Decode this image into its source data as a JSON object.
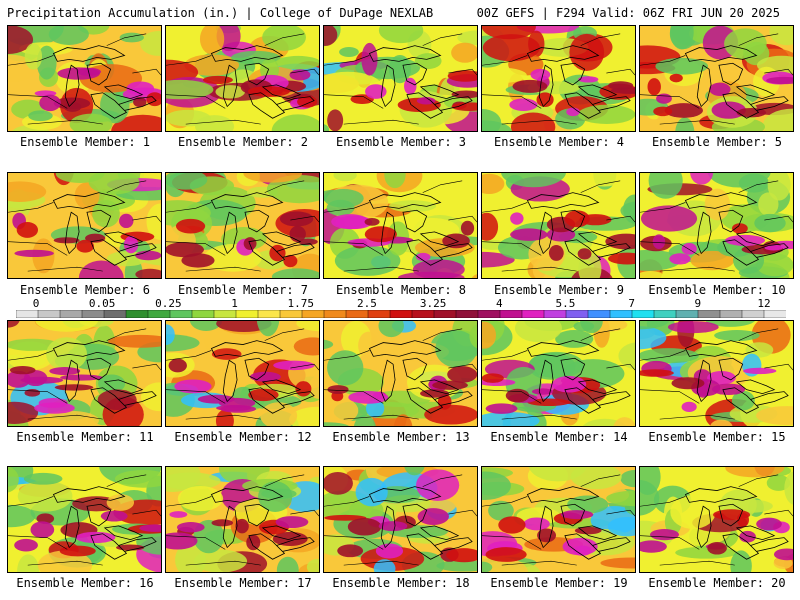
{
  "header": {
    "title": "Precipitation Accumulation (in.) | College of DuPage NEXLAB",
    "model_info": "00Z GEFS | F294 Valid: 06Z FRI JUN 20 2025"
  },
  "colorbar": {
    "labels": [
      "0",
      "0.05",
      "0.25",
      "1",
      "1.75",
      "2.5",
      "3.25",
      "4",
      "5.5",
      "7",
      "9",
      "12"
    ],
    "colors": [
      "#e6e6e6",
      "#c8c8c8",
      "#a8a8a8",
      "#8c8c8c",
      "#6e6e6e",
      "#2f8f2f",
      "#3fa83f",
      "#5fc65f",
      "#8fd63f",
      "#c8e63f",
      "#f0f030",
      "#fbe64a",
      "#f9c83a",
      "#f5a623",
      "#f08a1c",
      "#ea6a15",
      "#e04010",
      "#d01010",
      "#b8101c",
      "#a0102a",
      "#90103a",
      "#a01060",
      "#c01090",
      "#e020c0",
      "#c040e0",
      "#8060f0",
      "#4090ff",
      "#30c0ff",
      "#20e0f0",
      "#40d0c0",
      "#60b0b0",
      "#909090",
      "#b0b0b0",
      "#d0d0d0",
      "#e8e8e8"
    ]
  },
  "members": [
    {
      "caption": "Ensemble Member: 1"
    },
    {
      "caption": "Ensemble Member: 2"
    },
    {
      "caption": "Ensemble Member: 3"
    },
    {
      "caption": "Ensemble Member: 4"
    },
    {
      "caption": "Ensemble Member: 5"
    },
    {
      "caption": "Ensemble Member: 6"
    },
    {
      "caption": "Ensemble Member: 7"
    },
    {
      "caption": "Ensemble Member: 8"
    },
    {
      "caption": "Ensemble Member: 9"
    },
    {
      "caption": "Ensemble Member: 10"
    },
    {
      "caption": "Ensemble Member: 11"
    },
    {
      "caption": "Ensemble Member: 12"
    },
    {
      "caption": "Ensemble Member: 13"
    },
    {
      "caption": "Ensemble Member: 14"
    },
    {
      "caption": "Ensemble Member: 15"
    },
    {
      "caption": "Ensemble Member: 16"
    },
    {
      "caption": "Ensemble Member: 17"
    },
    {
      "caption": "Ensemble Member: 18"
    },
    {
      "caption": "Ensemble Member: 19"
    },
    {
      "caption": "Ensemble Member: 20"
    }
  ]
}
